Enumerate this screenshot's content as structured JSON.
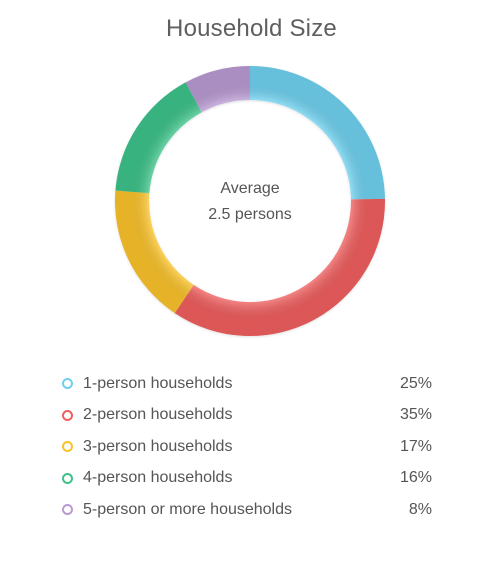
{
  "title": "Household Size",
  "center": {
    "line1": "Average",
    "line2": "2.5 persons"
  },
  "chart_data": {
    "type": "pie",
    "variant": "donut",
    "title": "Household Size",
    "categories": [
      "1-person households",
      "2-person households",
      "3-person households",
      "4-person households",
      "5-person or more households"
    ],
    "values": [
      25,
      35,
      17,
      16,
      8
    ],
    "value_labels": [
      "25%",
      "35%",
      "17%",
      "16%",
      "8%"
    ],
    "colors": [
      "#6fd0ee",
      "#ef5f5f",
      "#f9c22c",
      "#3dc28a",
      "#b99ad2"
    ],
    "legend_position": "bottom"
  }
}
